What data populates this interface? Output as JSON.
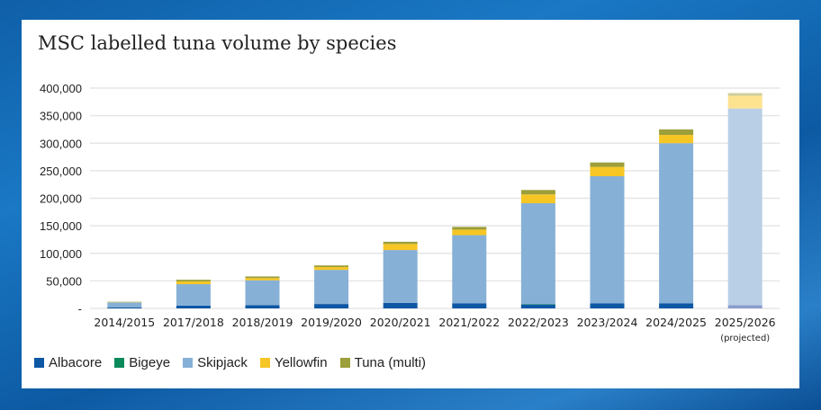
{
  "chart_data": {
    "type": "bar",
    "stacked": true,
    "title": "MSC labelled tuna volume by species",
    "xlabel": "",
    "ylabel": "",
    "ylim": [
      0,
      400000
    ],
    "yticks": [
      "-",
      "50,000",
      "100,000",
      "150,000",
      "200,000",
      "250,000",
      "300,000",
      "350,000",
      "400,000"
    ],
    "grid": true,
    "legend_position": "bottom-left",
    "categories": [
      "2014/2015",
      "2017/2018",
      "2018/2019",
      "2019/2020",
      "2020/2021",
      "2021/2022",
      "2022/2023",
      "2023/2024",
      "2024/2025",
      "2025/2026"
    ],
    "category_notes": [
      "",
      "",
      "",
      "",
      "",
      "",
      "",
      "",
      "",
      "(projected)"
    ],
    "projected_index": 9,
    "series": [
      {
        "name": "Albacore",
        "color": "#0d57a4",
        "projected_color": "#8a9dcc",
        "values": [
          2000,
          5000,
          6000,
          8000,
          10000,
          9000,
          7000,
          9000,
          9000,
          6000
        ]
      },
      {
        "name": "Bigeye",
        "color": "#0a8a5a",
        "projected_color": "#8cc7a8",
        "values": [
          0,
          0,
          0,
          0,
          0,
          0,
          1000,
          0,
          0,
          0
        ]
      },
      {
        "name": "Skipjack",
        "color": "#86b0d6",
        "projected_color": "#b9cfe6",
        "values": [
          9000,
          39000,
          45000,
          62000,
          96000,
          124000,
          183000,
          231000,
          291000,
          357000
        ]
      },
      {
        "name": "Yellowfin",
        "color": "#f6c624",
        "projected_color": "#fde390",
        "values": [
          500,
          5000,
          4000,
          5000,
          11000,
          10000,
          16000,
          17000,
          15000,
          23000
        ]
      },
      {
        "name": "Tuna (multi)",
        "color": "#9c9f3a",
        "projected_color": "#cfcf99",
        "values": [
          500,
          3000,
          3000,
          3000,
          4000,
          5000,
          8000,
          8000,
          10000,
          5000
        ]
      }
    ]
  }
}
